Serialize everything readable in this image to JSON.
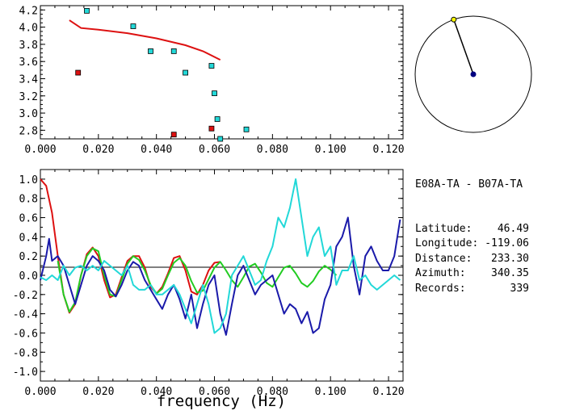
{
  "info": {
    "title": "E08A-TA - B07A-TA",
    "rows": [
      {
        "label": "Latitude:",
        "value": "46.49"
      },
      {
        "label": "Longitude:",
        "value": "-119.06"
      },
      {
        "label": "Distance:",
        "value": "233.30"
      },
      {
        "label": "Azimuth:",
        "value": "340.35"
      },
      {
        "label": "Records:",
        "value": "339"
      }
    ]
  },
  "colors": {
    "cyan": "#22d8d8",
    "red": "#dd1111",
    "blue": "#1a1aaa",
    "green": "#22cc22",
    "navy": "#000080"
  },
  "chart_data": [
    {
      "type": "scatter",
      "xlim": [
        0.0,
        0.125
      ],
      "ylim": [
        2.7,
        4.25
      ],
      "xticks": [
        "0.000",
        "0.020",
        "0.040",
        "0.060",
        "0.080",
        "0.100",
        "0.120"
      ],
      "yticks": [
        "2.8",
        "3.0",
        "3.2",
        "3.4",
        "3.6",
        "3.8",
        "4.0",
        "4.2"
      ],
      "xlabel": "",
      "ylabel": "",
      "series": [
        {
          "marker": "square",
          "color": "cyan",
          "points": [
            [
              0.016,
              4.19
            ],
            [
              0.032,
              4.01
            ],
            [
              0.038,
              3.72
            ],
            [
              0.046,
              3.72
            ],
            [
              0.05,
              3.47
            ],
            [
              0.059,
              3.55
            ],
            [
              0.06,
              3.23
            ],
            [
              0.061,
              2.93
            ],
            [
              0.062,
              2.7
            ],
            [
              0.071,
              2.81
            ]
          ]
        },
        {
          "marker": "square",
          "color": "red",
          "points": [
            [
              0.013,
              3.47
            ],
            [
              0.046,
              2.75
            ],
            [
              0.059,
              2.82
            ]
          ]
        },
        {
          "marker": "line",
          "color": "red",
          "points": [
            [
              0.01,
              4.08
            ],
            [
              0.014,
              3.99
            ],
            [
              0.02,
              3.97
            ],
            [
              0.03,
              3.93
            ],
            [
              0.04,
              3.87
            ],
            [
              0.05,
              3.79
            ],
            [
              0.056,
              3.72
            ],
            [
              0.062,
              3.62
            ]
          ]
        }
      ]
    },
    {
      "type": "line",
      "xlim": [
        0.0,
        0.125
      ],
      "ylim": [
        -1.1,
        1.1
      ],
      "xticks": [
        "0.000",
        "0.020",
        "0.040",
        "0.060",
        "0.080",
        "0.100",
        "0.120"
      ],
      "yticks": [
        "1.0",
        "0.8",
        "0.6",
        "0.4",
        "0.2",
        "0.0",
        "-0.2",
        "-0.4",
        "-0.6",
        "-0.8",
        "-1.0"
      ],
      "xlabel": "frequency (Hz)",
      "ylabel": "",
      "series": [
        {
          "color": "red",
          "x": [
            0.0,
            0.002,
            0.004,
            0.006,
            0.008,
            0.01,
            0.012,
            0.014,
            0.016,
            0.018,
            0.02,
            0.022,
            0.024,
            0.026,
            0.028,
            0.03,
            0.032,
            0.034,
            0.036,
            0.038,
            0.04,
            0.042,
            0.044,
            0.046,
            0.048,
            0.05,
            0.052,
            0.054,
            0.056,
            0.058,
            0.06,
            0.062
          ],
          "y": [
            1.0,
            0.93,
            0.65,
            0.2,
            -0.2,
            -0.39,
            -0.3,
            0.0,
            0.22,
            0.29,
            0.2,
            -0.05,
            -0.23,
            -0.2,
            -0.02,
            0.15,
            0.2,
            0.2,
            0.08,
            -0.12,
            -0.19,
            -0.12,
            0.02,
            0.18,
            0.2,
            0.05,
            -0.17,
            -0.2,
            -0.1,
            0.05,
            0.13,
            0.14
          ]
        },
        {
          "color": "green",
          "x": [
            0.006,
            0.008,
            0.01,
            0.012,
            0.014,
            0.016,
            0.018,
            0.02,
            0.022,
            0.024,
            0.026,
            0.028,
            0.03,
            0.032,
            0.034,
            0.036,
            0.038,
            0.04,
            0.042,
            0.044,
            0.046,
            0.048,
            0.05,
            0.052,
            0.054,
            0.056,
            0.058,
            0.06,
            0.062,
            0.064,
            0.066,
            0.068,
            0.07,
            0.072,
            0.074,
            0.076,
            0.078,
            0.08,
            0.082,
            0.084,
            0.086,
            0.088,
            0.09,
            0.092,
            0.094,
            0.096,
            0.098,
            0.1,
            0.102
          ],
          "y": [
            0.15,
            -0.2,
            -0.38,
            -0.28,
            0.0,
            0.2,
            0.28,
            0.25,
            0.0,
            -0.2,
            -0.22,
            -0.05,
            0.12,
            0.2,
            0.16,
            0.05,
            -0.1,
            -0.19,
            -0.14,
            0.0,
            0.13,
            0.18,
            0.1,
            -0.06,
            -0.18,
            -0.16,
            -0.04,
            0.08,
            0.14,
            0.05,
            -0.05,
            -0.12,
            -0.02,
            0.09,
            0.12,
            0.03,
            -0.08,
            -0.12,
            -0.02,
            0.08,
            0.1,
            0.02,
            -0.08,
            -0.12,
            -0.06,
            0.04,
            0.1,
            0.06,
            0.0
          ]
        },
        {
          "color": "blue",
          "x": [
            0.0,
            0.002,
            0.003,
            0.004,
            0.006,
            0.008,
            0.01,
            0.012,
            0.014,
            0.016,
            0.018,
            0.02,
            0.022,
            0.024,
            0.026,
            0.028,
            0.03,
            0.032,
            0.034,
            0.036,
            0.038,
            0.04,
            0.042,
            0.044,
            0.046,
            0.048,
            0.05,
            0.052,
            0.054,
            0.056,
            0.058,
            0.06,
            0.062,
            0.064,
            0.066,
            0.068,
            0.07,
            0.072,
            0.074,
            0.076,
            0.078,
            0.08,
            0.082,
            0.084,
            0.086,
            0.088,
            0.09,
            0.092,
            0.094,
            0.096,
            0.098,
            0.1,
            0.102,
            0.104,
            0.106,
            0.108,
            0.11,
            0.112,
            0.114,
            0.116,
            0.118,
            0.12,
            0.122,
            0.124
          ],
          "y": [
            -0.05,
            0.2,
            0.38,
            0.15,
            0.2,
            0.1,
            -0.1,
            -0.3,
            -0.1,
            0.1,
            0.2,
            0.15,
            0.05,
            -0.15,
            -0.22,
            -0.1,
            0.05,
            0.14,
            0.1,
            -0.05,
            -0.15,
            -0.25,
            -0.35,
            -0.2,
            -0.1,
            -0.25,
            -0.45,
            -0.2,
            -0.55,
            -0.3,
            -0.1,
            0.0,
            -0.4,
            -0.62,
            -0.3,
            0.0,
            0.1,
            -0.05,
            -0.2,
            -0.1,
            -0.05,
            0.0,
            -0.2,
            -0.4,
            -0.3,
            -0.35,
            -0.5,
            -0.38,
            -0.6,
            -0.55,
            -0.25,
            -0.1,
            0.3,
            0.4,
            0.6,
            0.1,
            -0.2,
            0.2,
            0.3,
            0.15,
            0.05,
            0.05,
            0.2,
            0.58
          ]
        },
        {
          "color": "cyan",
          "x": [
            0.0,
            0.002,
            0.004,
            0.006,
            0.008,
            0.01,
            0.012,
            0.014,
            0.016,
            0.018,
            0.02,
            0.022,
            0.024,
            0.026,
            0.028,
            0.03,
            0.032,
            0.034,
            0.036,
            0.038,
            0.04,
            0.042,
            0.044,
            0.046,
            0.048,
            0.05,
            0.052,
            0.054,
            0.056,
            0.058,
            0.06,
            0.062,
            0.064,
            0.066,
            0.068,
            0.07,
            0.072,
            0.074,
            0.076,
            0.078,
            0.08,
            0.082,
            0.084,
            0.086,
            0.088,
            0.09,
            0.092,
            0.094,
            0.096,
            0.098,
            0.1,
            0.102,
            0.104,
            0.106,
            0.108,
            0.11,
            0.112,
            0.114,
            0.116,
            0.118,
            0.12,
            0.122,
            0.124
          ],
          "y": [
            -0.02,
            -0.05,
            0.0,
            -0.05,
            0.1,
            0.0,
            0.08,
            0.1,
            0.05,
            0.1,
            0.05,
            0.15,
            0.1,
            0.05,
            0.0,
            0.1,
            -0.1,
            -0.15,
            -0.15,
            -0.1,
            -0.2,
            -0.2,
            -0.15,
            -0.1,
            -0.2,
            -0.35,
            -0.5,
            -0.3,
            -0.1,
            -0.3,
            -0.6,
            -0.55,
            -0.4,
            0.0,
            0.1,
            0.2,
            0.05,
            -0.1,
            -0.05,
            0.15,
            0.3,
            0.6,
            0.5,
            0.7,
            1.0,
            0.6,
            0.2,
            0.4,
            0.5,
            0.2,
            0.3,
            -0.1,
            0.05,
            0.05,
            0.2,
            -0.05,
            0.0,
            -0.1,
            -0.15,
            -0.1,
            -0.05,
            0.0,
            -0.05
          ]
        }
      ]
    }
  ],
  "polar": {
    "ray_azimuth_deg": 340.35
  }
}
